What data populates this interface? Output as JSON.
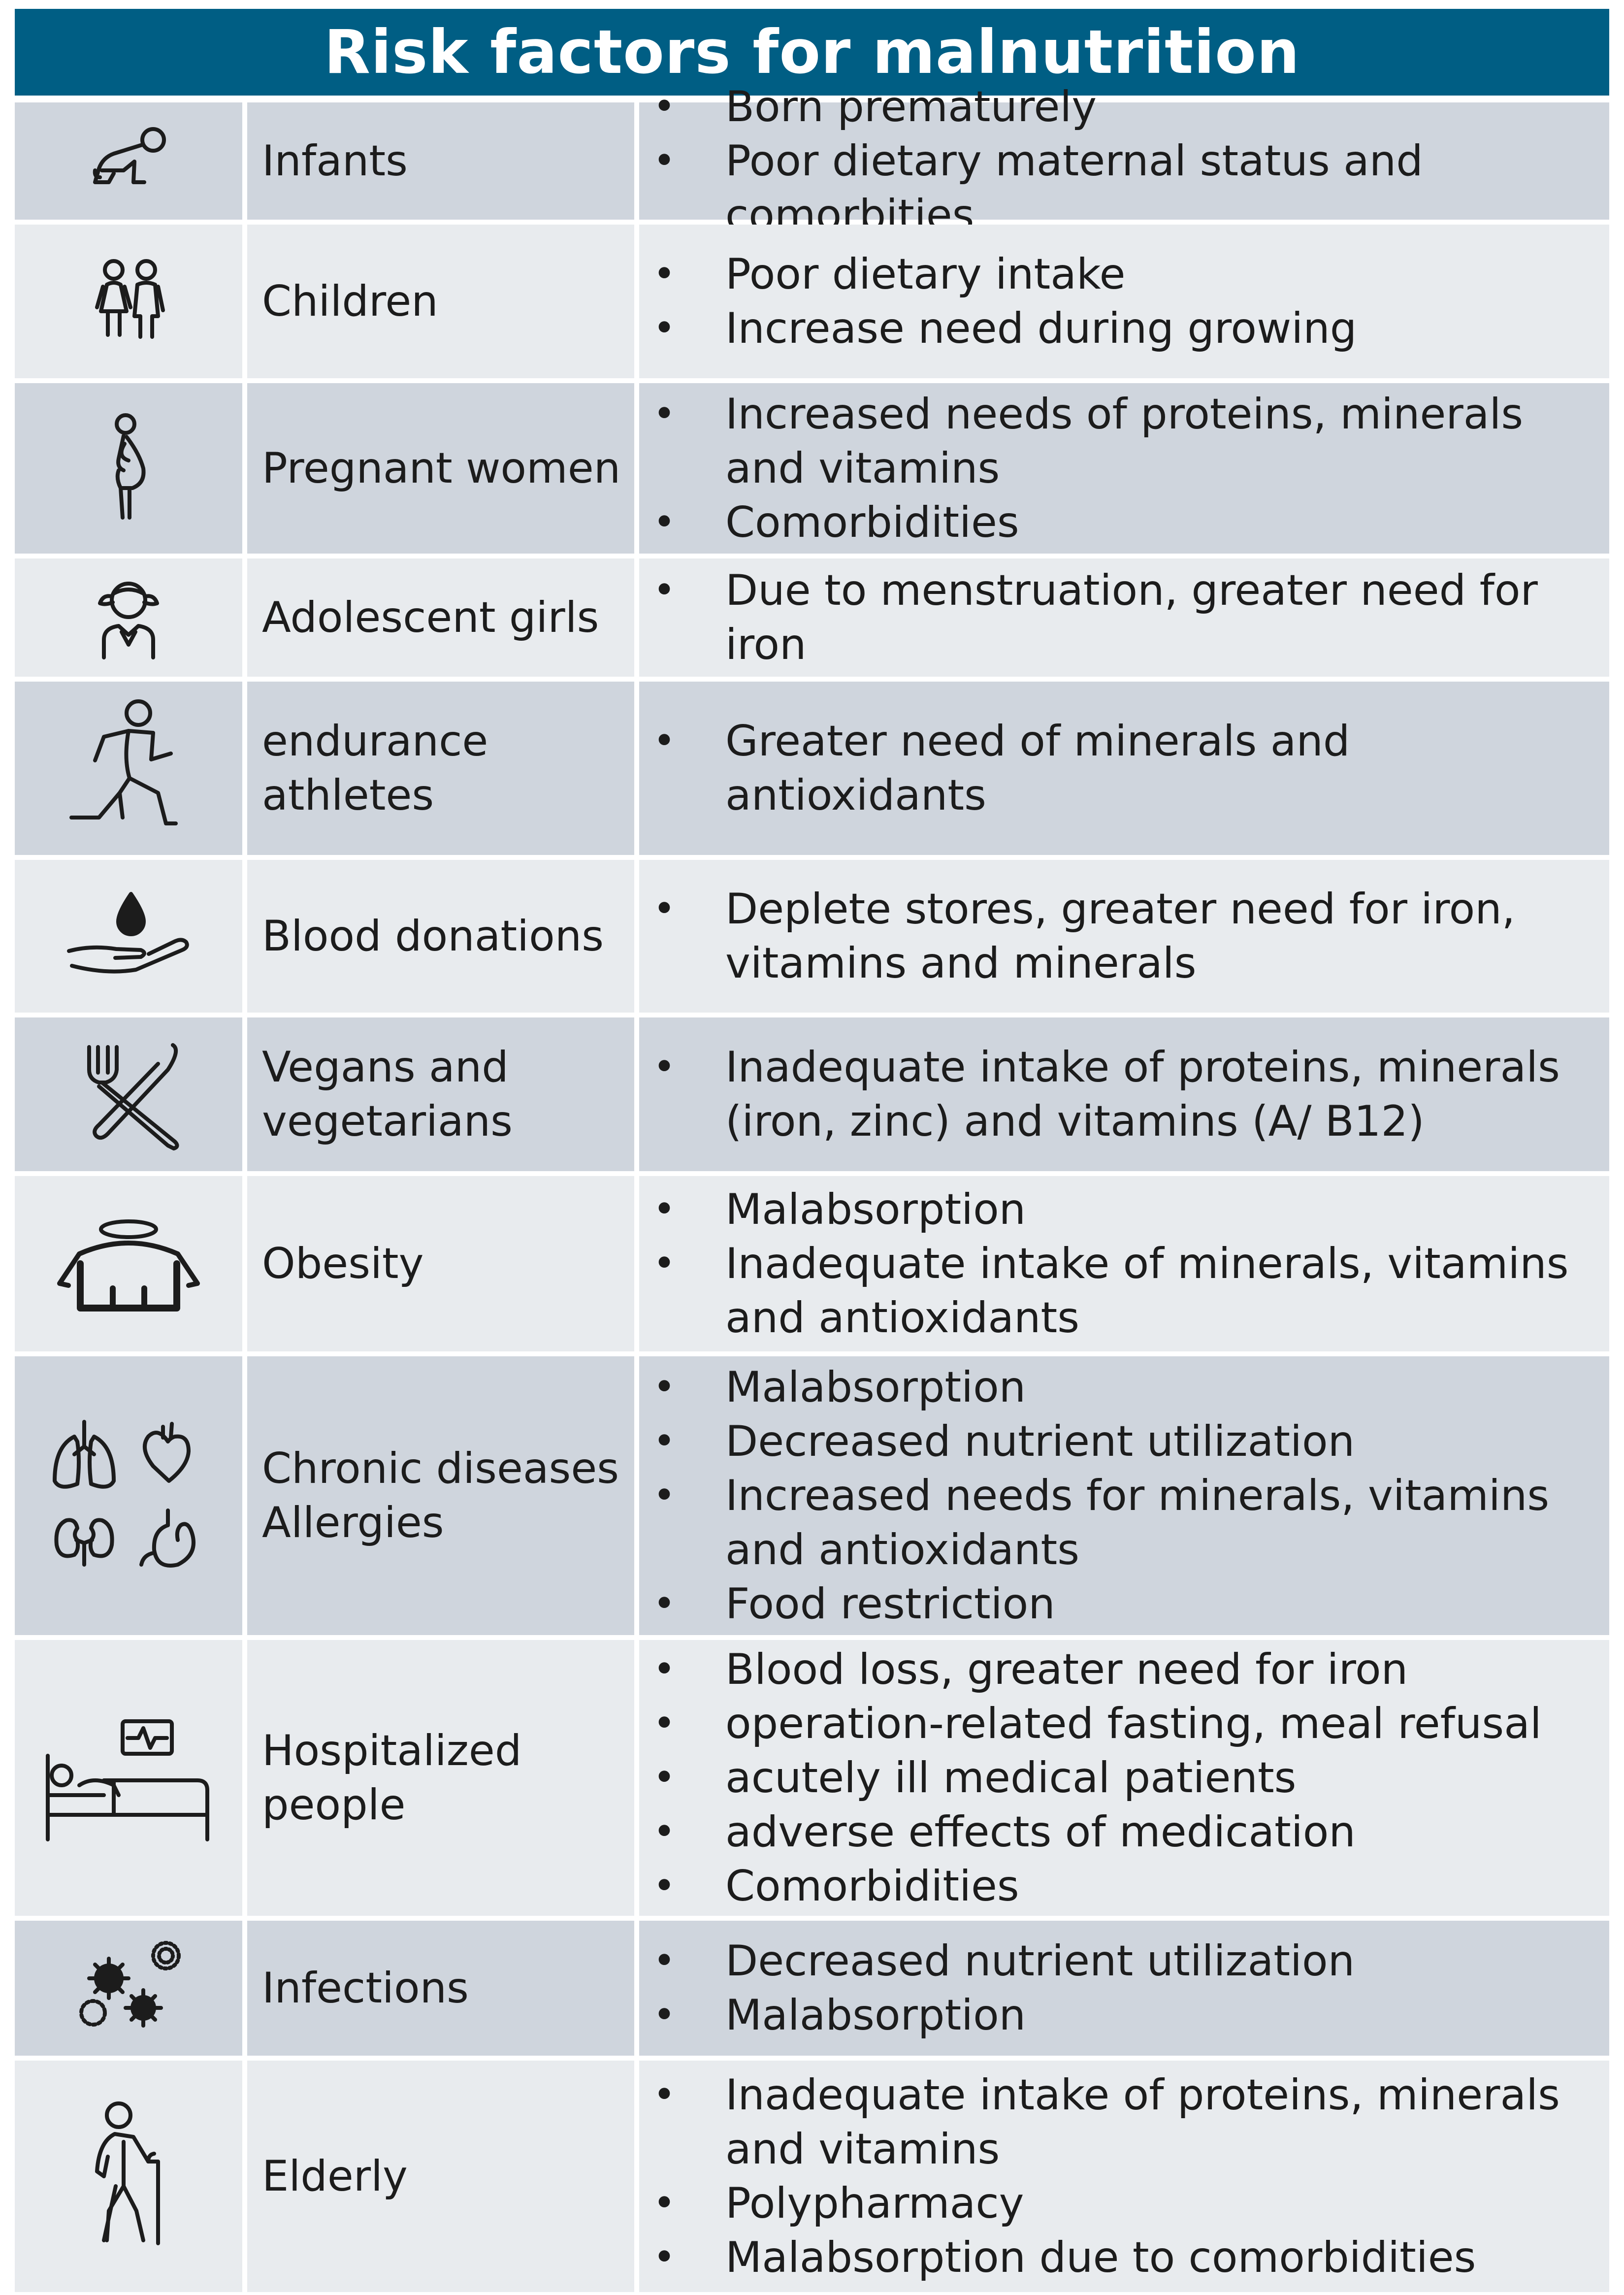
{
  "title": "Risk factors for malnutrition",
  "rows": [
    {
      "icon": "crawling-baby-icon",
      "group": "Infants",
      "factors": [
        "Born prematurely",
        "Poor dietary maternal status and comorbities"
      ]
    },
    {
      "icon": "children-icon",
      "group": "Children",
      "factors": [
        "Poor dietary intake",
        "Increase need during growing"
      ]
    },
    {
      "icon": "pregnant-woman-icon",
      "group": "Pregnant women",
      "factors": [
        "Increased needs of proteins, minerals and vitamins",
        "Comorbidities"
      ]
    },
    {
      "icon": "girl-icon",
      "group": "Adolescent girls",
      "factors": [
        "Due to menstruation, greater need for iron"
      ]
    },
    {
      "icon": "runner-icon",
      "group": "endurance athletes",
      "factors": [
        "Greater need of minerals and antioxidants"
      ]
    },
    {
      "icon": "blood-donation-icon",
      "group": "Blood donations",
      "factors": [
        "Deplete stores, greater need for iron, vitamins and minerals"
      ]
    },
    {
      "icon": "fork-knife-icon",
      "group": "Vegans and vegetarians",
      "factors": [
        "Inadequate intake of proteins, minerals (iron, zinc) and vitamins (A/ B12)"
      ]
    },
    {
      "icon": "obese-body-icon",
      "group": "Obesity",
      "factors": [
        "Malabsorption",
        "Inadequate intake of minerals, vitamins and antioxidants"
      ]
    },
    {
      "icon": "organs-icon",
      "group": "Chronic diseases Allergies",
      "factors": [
        "Malabsorption",
        "Decreased nutrient utilization",
        "Increased needs for minerals, vitamins and antioxidants",
        "Food restriction"
      ]
    },
    {
      "icon": "hospital-bed-icon",
      "group": "Hospitalized people",
      "factors": [
        "Blood loss, greater need for iron",
        "operation-related fasting, meal refusal",
        "acutely ill medical patients",
        "adverse effects of medication",
        "Comorbidities"
      ]
    },
    {
      "icon": "germs-icon",
      "group": "Infections",
      "factors": [
        "Decreased nutrient utilization",
        "Malabsorption"
      ]
    },
    {
      "icon": "elderly-person-icon",
      "group": "Elderly",
      "factors": [
        "Inadequate intake of proteins, minerals and vitamins",
        "Polypharmacy",
        "Malabsorption due to comorbidities"
      ]
    }
  ]
}
